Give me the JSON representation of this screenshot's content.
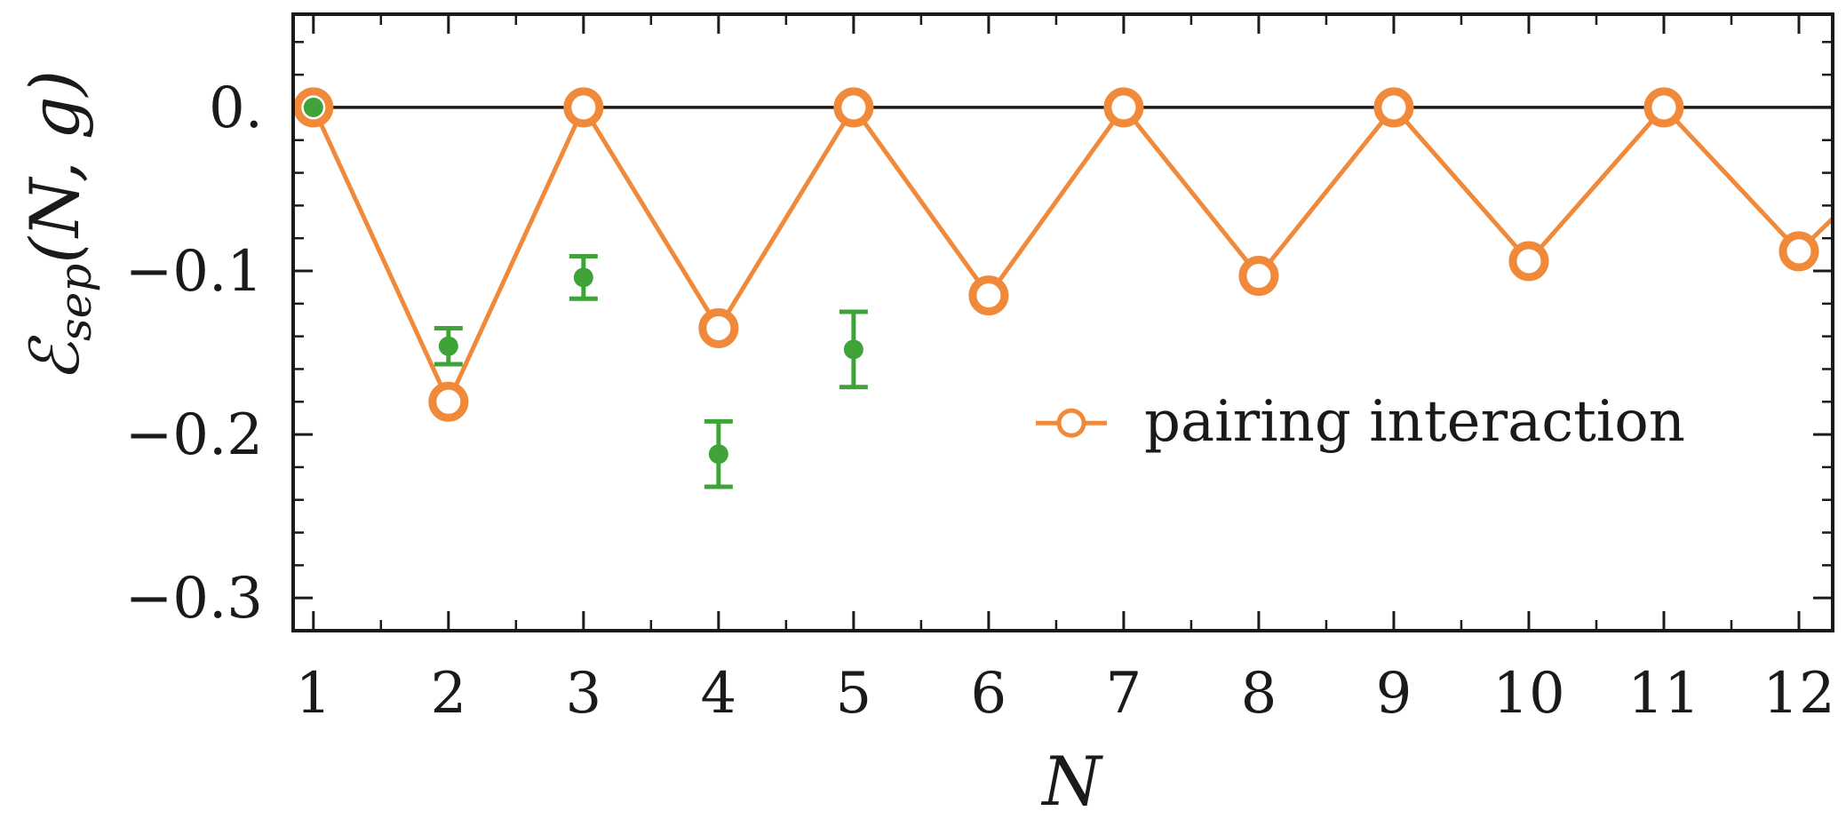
{
  "chart_data": {
    "type": "line",
    "xlabel": "N",
    "ylabel_main": "ℰ",
    "ylabel_sub": "sep",
    "ylabel_args": "(N, g)",
    "xlim": [
      0.85,
      12.25
    ],
    "ylim": [
      -0.32,
      0.057
    ],
    "x_ticks": [
      1,
      2,
      3,
      4,
      5,
      6,
      7,
      8,
      9,
      10,
      11,
      12
    ],
    "y_ticks": [
      0,
      -0.1,
      -0.2,
      -0.3
    ],
    "y_tick_labels": [
      "0.",
      "−0.1",
      "−0.2",
      "−0.3"
    ],
    "reference_line_y": 0,
    "legend_position": "right, middle",
    "colors": {
      "pairing": "#f0893a",
      "measured": "#3fa33a",
      "axis": "#1a1a1a"
    },
    "series": [
      {
        "name": "pairing interaction",
        "style": "line-with-open-circles",
        "x": [
          1,
          2,
          3,
          4,
          5,
          6,
          7,
          8,
          9,
          10,
          11,
          12
        ],
        "y": [
          0,
          -0.18,
          0,
          -0.135,
          0,
          -0.115,
          0,
          -0.103,
          0,
          -0.094,
          0,
          -0.088
        ],
        "trailing_segment_to": [
          12.25,
          -0.068
        ]
      },
      {
        "style": "points-with-error-bars",
        "x": [
          1,
          2,
          3,
          4,
          5
        ],
        "y": [
          0,
          -0.146,
          -0.104,
          -0.212,
          -0.148
        ],
        "yerr": [
          0,
          0.011,
          0.013,
          0.02,
          0.023
        ]
      }
    ]
  }
}
